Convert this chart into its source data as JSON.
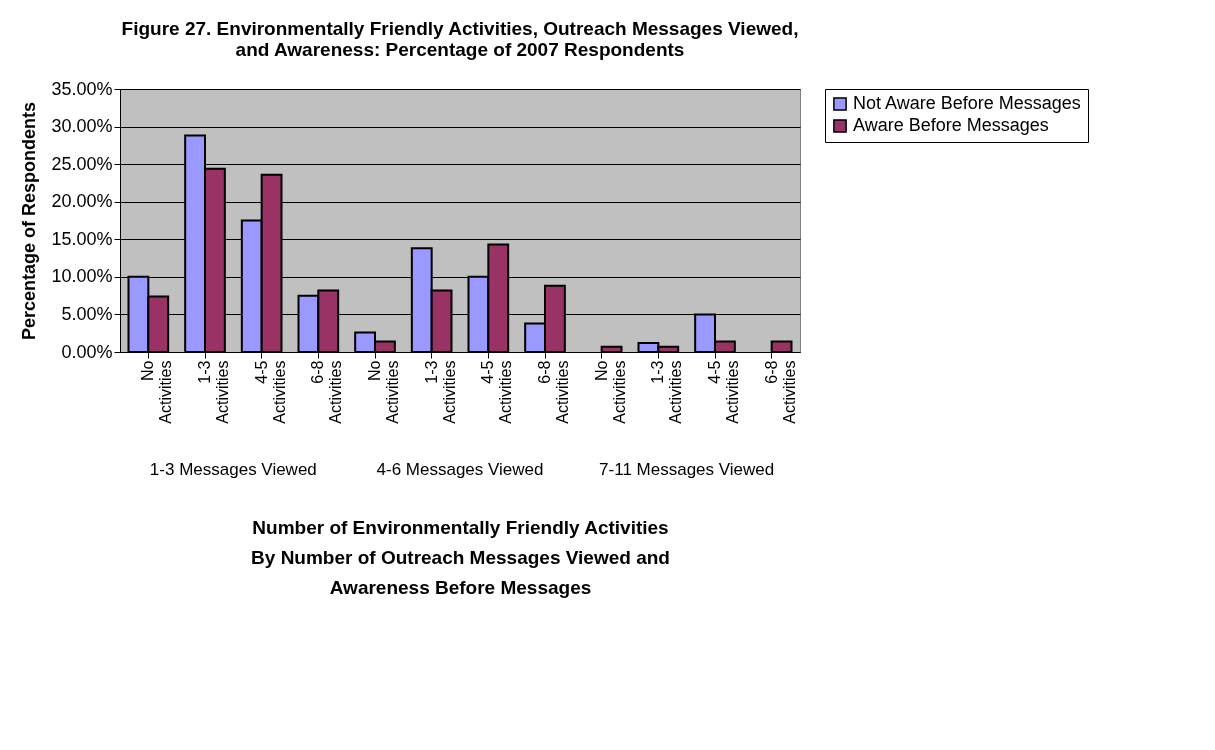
{
  "chart_data": {
    "type": "bar",
    "title": "Figure 27.  Environmentally Friendly Activities, Outreach Messages Viewed,\nand Awareness:  Percentage of 2007 Respondents",
    "xlabel": "Number of Environmentally Friendly Activities\nBy Number of Outreach Messages Viewed and\nAwareness Before Messages",
    "ylabel": "Percentage of Respondents",
    "categories": [
      "No Activities",
      "1-3 Activities",
      "4-5 Activities",
      "6-8 Activities",
      "No Activities",
      "1-3 Activities",
      "4-5 Activities",
      "6-8 Activities",
      "No Activities",
      "1-3 Activities",
      "4-5 Activities",
      "6-8 Activities"
    ],
    "annotations": [
      "1-3 Messages Viewed",
      "4-6 Messages Viewed",
      "7-11 Messages Viewed"
    ],
    "series": [
      {
        "name": "Not Aware Before Messages",
        "color": "#9999ff",
        "values": [
          10.0,
          28.8,
          17.5,
          7.5,
          2.6,
          13.8,
          10.0,
          3.8,
          null,
          1.2,
          5.0,
          null
        ]
      },
      {
        "name": "Aware Before Messages",
        "color": "#993366",
        "values": [
          7.4,
          24.4,
          23.6,
          8.2,
          1.4,
          8.2,
          14.3,
          8.8,
          0.7,
          0.7,
          1.4,
          1.4
        ]
      }
    ],
    "ylim": [
      0,
      35
    ],
    "yticks": [
      {
        "value": 0,
        "label": "0.00%"
      },
      {
        "value": 5,
        "label": "5.00%"
      },
      {
        "value": 10,
        "label": "10.00%"
      },
      {
        "value": 15,
        "label": "15.00%"
      },
      {
        "value": 20,
        "label": "20.00%"
      },
      {
        "value": 25,
        "label": "25.00%"
      },
      {
        "value": 30,
        "label": "30.00%"
      },
      {
        "value": 35,
        "label": "35.00%"
      }
    ],
    "grid": "y",
    "legend": "right"
  }
}
